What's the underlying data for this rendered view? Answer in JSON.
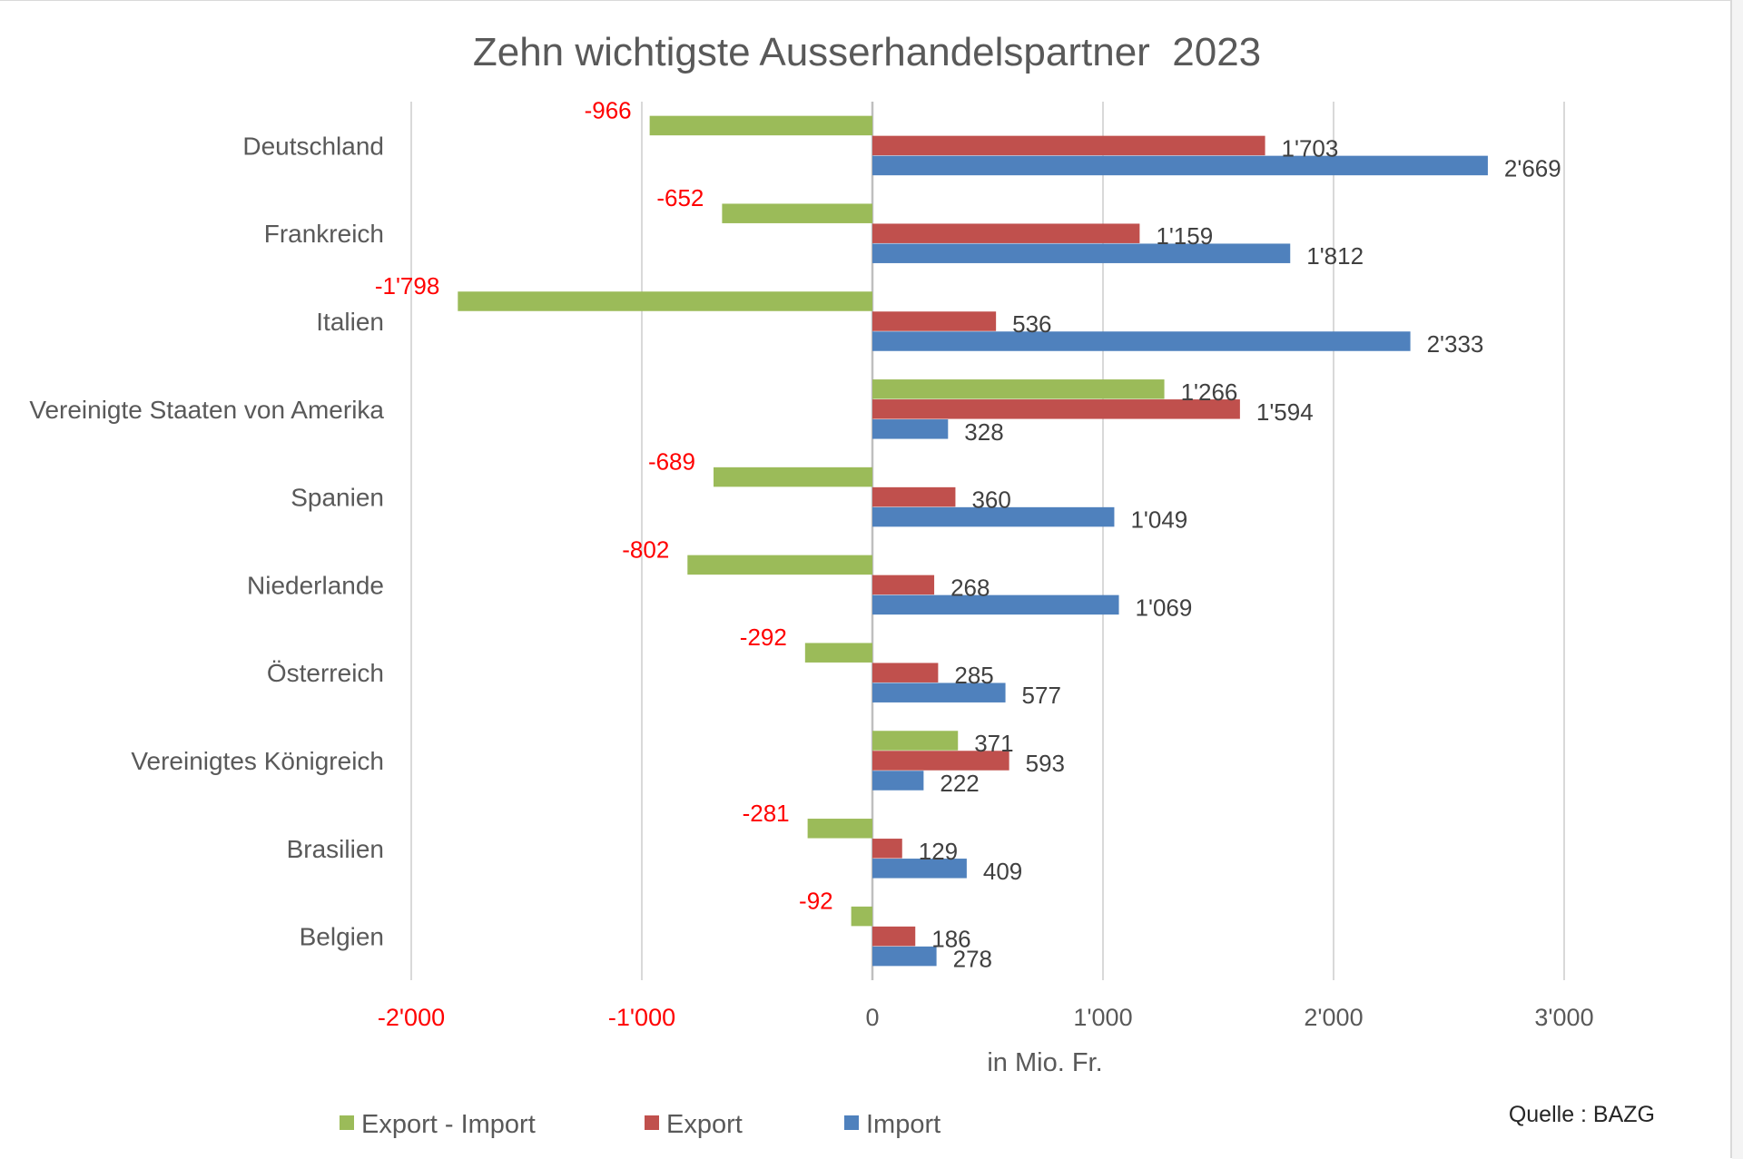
{
  "chart_data": {
    "type": "bar",
    "orientation": "horizontal",
    "title": "Zehn wichtigste Ausserhandelspartner  2023",
    "xlabel": "in Mio. Fr.",
    "ylabel": "",
    "source": "Quelle : BAZG",
    "xlim": [
      -2000,
      3000
    ],
    "xticks": [
      -2000,
      -1000,
      0,
      1000,
      2000,
      3000
    ],
    "xtick_labels": [
      "-2'000",
      "-1'000",
      "0",
      "1'000",
      "2'000",
      "3'000"
    ],
    "grid": "vertical",
    "legend_position": "bottom",
    "categories": [
      "Deutschland",
      "Frankreich",
      "Italien",
      "Vereinigte Staaten von Amerika",
      "Spanien",
      "Niederlande",
      "Österreich",
      "Vereinigtes Königreich",
      "Brasilien",
      "Belgien"
    ],
    "series": [
      {
        "name": "Export - Import",
        "color": "#9bbb59",
        "values": [
          -966,
          -652,
          -1798,
          1266,
          -689,
          -802,
          -292,
          371,
          -281,
          -92
        ],
        "labels": [
          "-966",
          "-652",
          "-1'798",
          "1'266",
          "-689",
          "-802",
          "-292",
          "371",
          "-281",
          "-92"
        ]
      },
      {
        "name": "Export",
        "color": "#c0504d",
        "values": [
          1703,
          1159,
          536,
          1594,
          360,
          268,
          285,
          593,
          129,
          186
        ],
        "labels": [
          "1'703",
          "1'159",
          "536",
          "1'594",
          "360",
          "268",
          "285",
          "593",
          "129",
          "186"
        ]
      },
      {
        "name": "Import",
        "color": "#4f81bd",
        "values": [
          2669,
          1812,
          2333,
          328,
          1049,
          1069,
          577,
          222,
          409,
          278
        ],
        "labels": [
          "2'669",
          "1'812",
          "2'333",
          "328",
          "1'049",
          "1'069",
          "577",
          "222",
          "409",
          "278"
        ]
      }
    ],
    "negative_label_color": "#ff0000",
    "positive_label_color": "#404040"
  }
}
